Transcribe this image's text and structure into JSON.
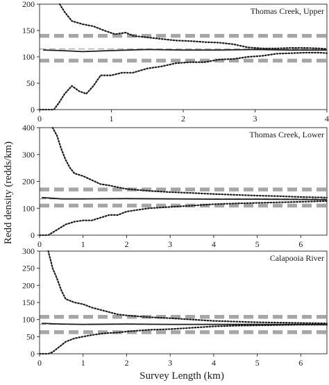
{
  "figure": {
    "ylabel": "Redd density (redds/km)",
    "xlabel": "Survey Length (km)"
  },
  "colors": {
    "mean_line": "#1a1a1a",
    "bounds_dotted": "#1a1a1a",
    "reference_dashed": "#a6a6a6",
    "axis": "#333333"
  },
  "chart_data": [
    {
      "type": "line",
      "title": "Thomas Creek, Upper",
      "xlim": [
        0,
        4
      ],
      "ylim": [
        0,
        200
      ],
      "xticks": [
        0,
        1,
        2,
        3,
        4
      ],
      "yticks": [
        0,
        50,
        100,
        150,
        200
      ],
      "reference_lines": {
        "true_density": 115,
        "upper": 140,
        "lower": 93
      },
      "series": [
        {
          "style": "solid",
          "x": [
            0.05,
            0.3,
            0.6,
            1.0,
            1.5,
            2.0,
            2.5,
            3.0,
            3.5,
            4.0
          ],
          "y": [
            113,
            112,
            110,
            112,
            114,
            113,
            113,
            114,
            113,
            113
          ]
        },
        {
          "style": "dotted-upper",
          "x": [
            0.28,
            0.35,
            0.45,
            0.6,
            0.75,
            0.9,
            1.05,
            1.2,
            1.3,
            1.5,
            1.7,
            1.9,
            2.1,
            2.3,
            2.5,
            2.7,
            2.9,
            3.1,
            3.3,
            3.5,
            3.7,
            3.9,
            4.0
          ],
          "y": [
            200,
            185,
            168,
            162,
            158,
            150,
            143,
            146,
            140,
            137,
            134,
            131,
            130,
            128,
            127,
            124,
            118,
            116,
            116,
            117,
            117,
            116,
            115
          ]
        },
        {
          "style": "dotted-lower",
          "x": [
            0.0,
            0.2,
            0.28,
            0.35,
            0.45,
            0.55,
            0.65,
            0.75,
            0.85,
            1.0,
            1.15,
            1.3,
            1.5,
            1.7,
            1.9,
            2.1,
            2.3,
            2.5,
            2.7,
            2.9,
            3.1,
            3.3,
            3.5,
            3.7,
            3.9,
            4.0
          ],
          "y": [
            0,
            0,
            15,
            30,
            45,
            35,
            30,
            45,
            65,
            65,
            70,
            70,
            78,
            82,
            88,
            90,
            90,
            95,
            96,
            100,
            102,
            106,
            107,
            108,
            108,
            107
          ]
        }
      ]
    },
    {
      "type": "line",
      "title": "Thomas Creek, Lower",
      "xlim": [
        0,
        6.6
      ],
      "ylim": [
        0,
        400
      ],
      "xticks": [
        0,
        1,
        2,
        3,
        4,
        5,
        6
      ],
      "yticks": [
        0,
        100,
        200,
        300,
        400
      ],
      "reference_lines": {
        "true_density": 135,
        "upper": 170,
        "lower": 110
      },
      "series": [
        {
          "style": "solid",
          "x": [
            0.05,
            0.5,
            1.0,
            2.0,
            3.0,
            4.0,
            5.0,
            6.0,
            6.6
          ],
          "y": [
            140,
            135,
            135,
            136,
            135,
            134,
            134,
            133,
            132
          ]
        },
        {
          "style": "dotted-upper",
          "x": [
            0.3,
            0.4,
            0.5,
            0.6,
            0.7,
            0.8,
            1.0,
            1.2,
            1.4,
            1.6,
            1.8,
            2.0,
            2.5,
            3.0,
            3.5,
            4.0,
            4.5,
            5.0,
            5.5,
            6.0,
            6.6
          ],
          "y": [
            400,
            370,
            320,
            280,
            250,
            230,
            220,
            205,
            190,
            185,
            178,
            172,
            165,
            160,
            157,
            153,
            150,
            147,
            145,
            142,
            140
          ]
        },
        {
          "style": "dotted-lower",
          "x": [
            0.0,
            0.2,
            0.3,
            0.4,
            0.5,
            0.6,
            0.7,
            0.8,
            1.0,
            1.2,
            1.4,
            1.6,
            1.8,
            2.0,
            2.5,
            3.0,
            3.5,
            4.0,
            4.5,
            5.0,
            5.5,
            6.0,
            6.6
          ],
          "y": [
            0,
            0,
            10,
            20,
            30,
            40,
            45,
            50,
            55,
            55,
            65,
            75,
            75,
            88,
            100,
            105,
            110,
            115,
            118,
            120,
            122,
            124,
            127
          ]
        }
      ]
    },
    {
      "type": "line",
      "title": "Calapooia River",
      "xlim": [
        0,
        6.6
      ],
      "ylim": [
        0,
        300
      ],
      "xticks": [
        0,
        1,
        2,
        3,
        4,
        5,
        6
      ],
      "yticks": [
        0,
        50,
        100,
        150,
        200,
        250,
        300
      ],
      "reference_lines": {
        "true_density": 86,
        "upper": 108,
        "lower": 63
      },
      "series": [
        {
          "style": "solid",
          "x": [
            0.05,
            0.5,
            1.0,
            2.0,
            3.0,
            4.0,
            5.0,
            6.0,
            6.6
          ],
          "y": [
            89,
            87,
            86,
            87,
            86,
            86,
            86,
            86,
            86
          ]
        },
        {
          "style": "dotted-upper",
          "x": [
            0.2,
            0.25,
            0.3,
            0.35,
            0.4,
            0.5,
            0.6,
            0.7,
            0.8,
            1.0,
            1.2,
            1.5,
            1.8,
            2.0,
            2.5,
            3.0,
            3.5,
            4.0,
            4.5,
            5.0,
            5.5,
            6.0,
            6.6
          ],
          "y": [
            300,
            275,
            250,
            235,
            220,
            185,
            160,
            155,
            150,
            145,
            135,
            125,
            115,
            112,
            107,
            104,
            100,
            96,
            94,
            92,
            91,
            90,
            89
          ]
        },
        {
          "style": "dotted-lower",
          "x": [
            0.0,
            0.2,
            0.3,
            0.4,
            0.5,
            0.6,
            0.8,
            1.0,
            1.2,
            1.5,
            1.8,
            2.0,
            2.5,
            3.0,
            3.5,
            4.0,
            4.5,
            5.0,
            5.5,
            6.0,
            6.6
          ],
          "y": [
            0,
            0,
            5,
            15,
            25,
            35,
            45,
            50,
            55,
            60,
            62,
            65,
            70,
            72,
            76,
            80,
            82,
            83,
            84,
            85,
            85
          ]
        }
      ]
    }
  ]
}
